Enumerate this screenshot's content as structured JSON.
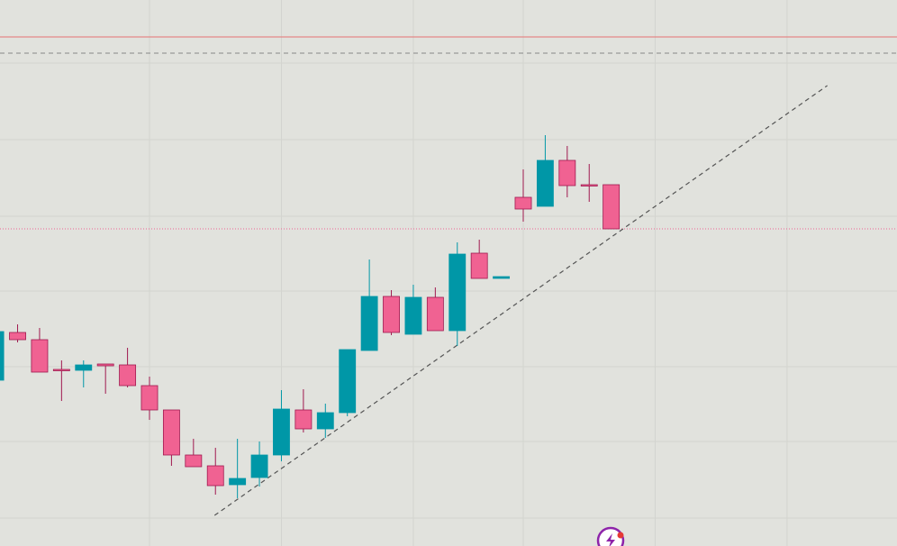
{
  "chart_data": {
    "type": "candlestick",
    "x": [
      0,
      1,
      2,
      3,
      4,
      5,
      6,
      7,
      8,
      9,
      10,
      11,
      12,
      13,
      14,
      15,
      16,
      17,
      18,
      19,
      20,
      21,
      22,
      23,
      24,
      25,
      26,
      27,
      28
    ],
    "open": [
      184,
      237,
      229,
      196,
      195,
      202,
      201,
      178,
      151,
      101,
      89,
      68,
      76,
      101,
      151,
      130,
      148,
      217,
      277,
      235,
      276,
      239,
      325,
      297,
      387,
      377,
      428,
      401,
      401
    ],
    "high": [
      238,
      246,
      242,
      206,
      206,
      202,
      220,
      188,
      151,
      119,
      109,
      119,
      116,
      173,
      174,
      158,
      218,
      318,
      284,
      290,
      287,
      337,
      340,
      299,
      418,
      456,
      444,
      424,
      401
    ],
    "low": [
      184,
      226,
      193,
      161,
      176,
      169,
      176,
      140,
      89,
      88,
      57,
      53,
      66,
      94,
      126,
      120,
      144,
      217,
      234,
      235,
      239,
      222,
      297,
      297,
      360,
      377,
      387,
      382,
      352
    ],
    "close": [
      238,
      229,
      193,
      195,
      201,
      200,
      178,
      151,
      101,
      88,
      67,
      75,
      101,
      152,
      130,
      148,
      218,
      277,
      237,
      276,
      239,
      324,
      297,
      299,
      374,
      428,
      400,
      400,
      352
    ],
    "up_color": "#0097a7",
    "down_color": "#f06292",
    "xlim": [
      0.2,
      41
    ],
    "ylim": [
      0,
      606
    ],
    "xticks": [
      7,
      13,
      19,
      24,
      30,
      36
    ],
    "yticks": [
      31,
      116,
      199,
      283,
      366,
      451,
      536
    ],
    "grid": true,
    "hlines": [
      {
        "value": 565,
        "color": "#e57373",
        "style": "solid"
      },
      {
        "value": 547,
        "color": "#888888",
        "style": "dashed"
      },
      {
        "value": 352,
        "color": "#f06292",
        "style": "dotted"
      }
    ],
    "trendline": {
      "x": [
        9.96,
        37.83
      ],
      "y": [
        34,
        511
      ],
      "color": "#555555"
    }
  }
}
